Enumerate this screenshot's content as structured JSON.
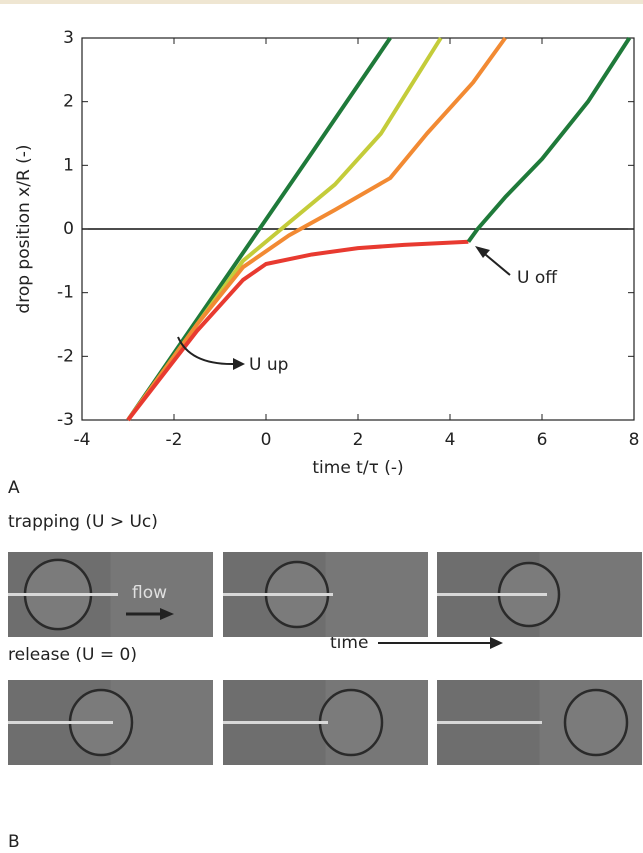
{
  "chart_data": {
    "type": "line",
    "xlabel": "time t/τ (-)",
    "ylabel": "drop position x/R (-)",
    "xlim": [
      -4,
      8
    ],
    "ylim": [
      -3,
      3
    ],
    "xticks": [
      -4,
      -2,
      0,
      2,
      4,
      6,
      8
    ],
    "yticks": [
      -3,
      -2,
      -1,
      0,
      1,
      2,
      3
    ],
    "series": [
      {
        "color": "#1f7a3a",
        "x": [
          -3,
          -1,
          1,
          2.7
        ],
        "values": [
          -3,
          -0.9,
          1.2,
          3
        ]
      },
      {
        "color": "#c4cc3a",
        "x": [
          -3,
          -1.5,
          -0.5,
          0.5,
          1.5,
          2.5,
          3.8
        ],
        "values": [
          -3,
          -1.5,
          -0.5,
          0.1,
          0.7,
          1.5,
          3
        ]
      },
      {
        "color": "#f28a33",
        "x": [
          -3,
          -1.5,
          -0.5,
          0.5,
          1.5,
          2.7,
          3.5,
          4.5,
          5.2
        ],
        "values": [
          -3,
          -1.5,
          -0.6,
          -0.1,
          0.3,
          0.8,
          1.5,
          2.3,
          3
        ]
      },
      {
        "color": "#e83a30",
        "x": [
          -3,
          -1.5,
          -0.5,
          0,
          1,
          2,
          3,
          4.4
        ],
        "values": [
          -3,
          -1.6,
          -0.8,
          -0.55,
          -0.4,
          -0.3,
          -0.25,
          -0.2
        ]
      },
      {
        "color": "#1f7a3a",
        "x": [
          4.4,
          4.6,
          5.2,
          6,
          7,
          7.9
        ],
        "values": [
          -0.2,
          0,
          0.5,
          1.1,
          2,
          3
        ]
      }
    ],
    "annotations": [
      "U up",
      "U off"
    ]
  },
  "panel_a": "A",
  "panel_b": "B",
  "trapping": "trapping (U > Uc)",
  "release": "release (U = 0)",
  "flow": "flow",
  "time": "time"
}
